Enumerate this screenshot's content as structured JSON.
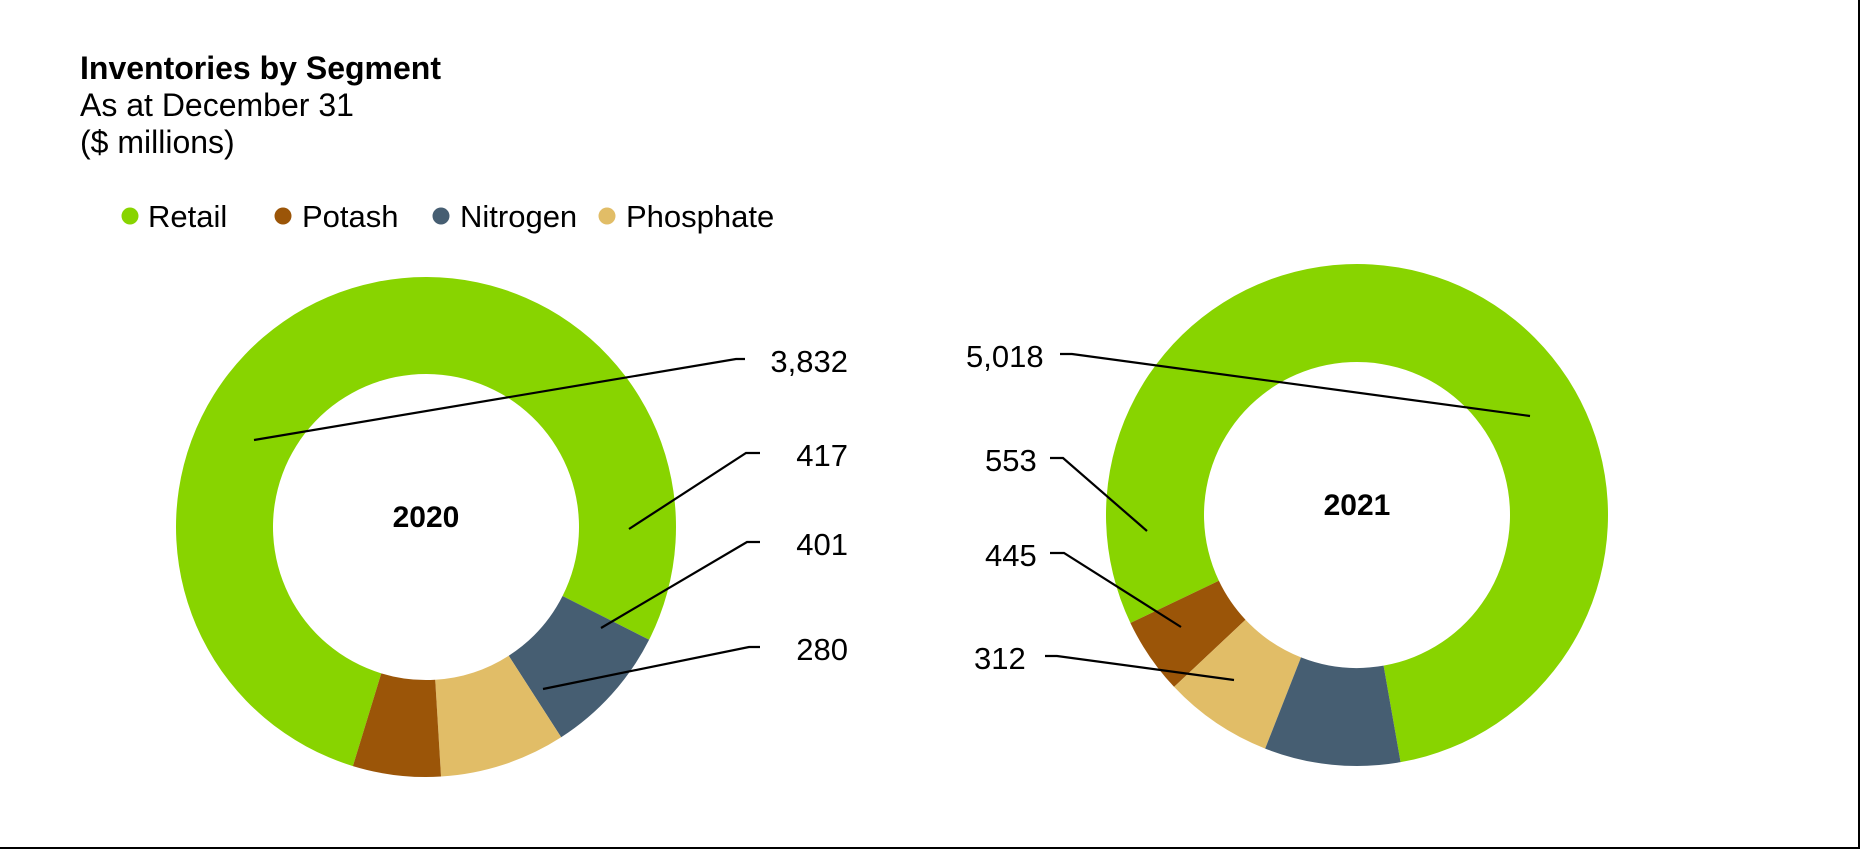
{
  "chart_data": {
    "type": "donut",
    "title": "Inventories by Segment",
    "subtitle_lines": [
      "As at December 31",
      "($ millions)"
    ],
    "legend": {
      "placement": "top-left",
      "items": [
        {
          "name": "Retail",
          "color": "#88d400"
        },
        {
          "name": "Potash",
          "color": "#9b5508"
        },
        {
          "name": "Nitrogen",
          "color": "#465e72"
        },
        {
          "name": "Phosphate",
          "color": "#e1bd67"
        }
      ]
    },
    "charts": [
      {
        "center_label": "2020",
        "slices": [
          {
            "name": "Retail",
            "value": 3832,
            "label": "3,832",
            "color": "#88d400"
          },
          {
            "name": "Nitrogen",
            "value": 417,
            "label": "417",
            "color": "#465e72"
          },
          {
            "name": "Phosphate",
            "value": 401,
            "label": "401",
            "color": "#e1bd67"
          },
          {
            "name": "Potash",
            "value": 280,
            "label": "280",
            "color": "#9b5508"
          }
        ]
      },
      {
        "center_label": "2021",
        "slices": [
          {
            "name": "Retail",
            "value": 5018,
            "label": "5,018",
            "color": "#88d400"
          },
          {
            "name": "Potash",
            "value": 312,
            "label": "312",
            "color": "#9b5508"
          },
          {
            "name": "Phosphate",
            "value": 445,
            "label": "445",
            "color": "#e1bd67"
          },
          {
            "name": "Nitrogen",
            "value": 553,
            "label": "553",
            "color": "#465e72"
          }
        ]
      }
    ]
  }
}
